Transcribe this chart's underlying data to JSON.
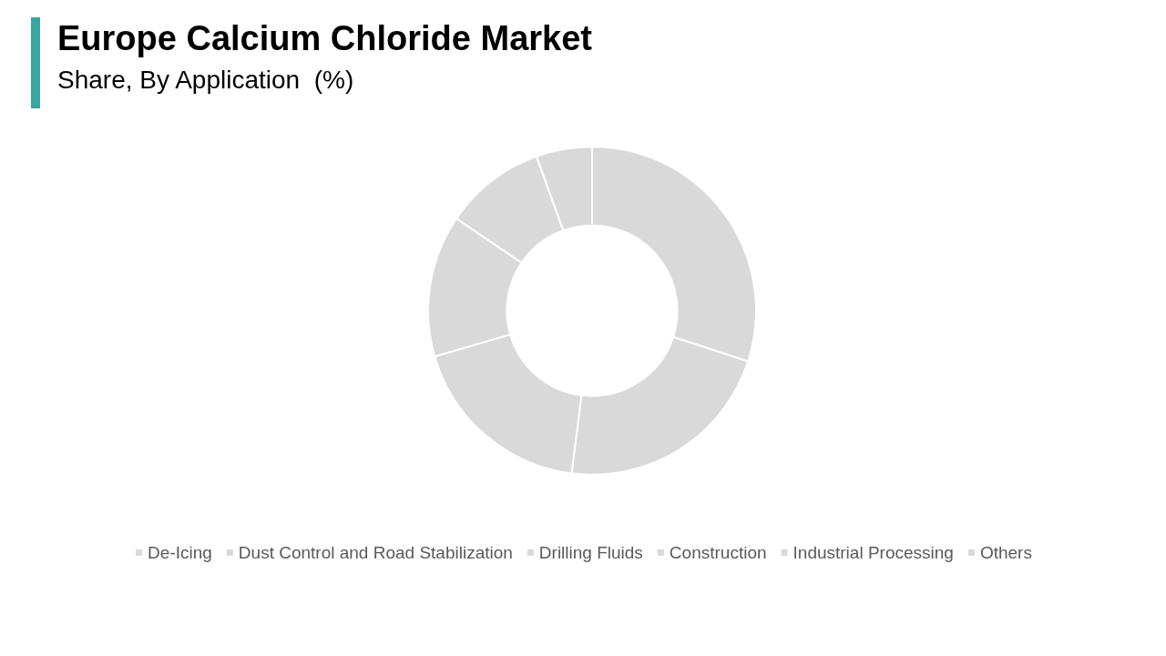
{
  "chart_data": {
    "type": "donut",
    "title": "Europe Calcium Chloride Market",
    "subtitle": "Share, By Application  (%)",
    "categories": [
      "De-Icing",
      "Dust Control and Road Stabilization",
      "Drilling Fluids",
      "Construction",
      "Industrial Processing",
      "Others"
    ],
    "values": [
      30,
      22,
      18.5,
      14,
      10,
      5.5
    ],
    "colors": [
      "#d9d9d9",
      "#d9d9d9",
      "#d9d9d9",
      "#d9d9d9",
      "#d9d9d9",
      "#d9d9d9"
    ],
    "legend": "bottom"
  }
}
